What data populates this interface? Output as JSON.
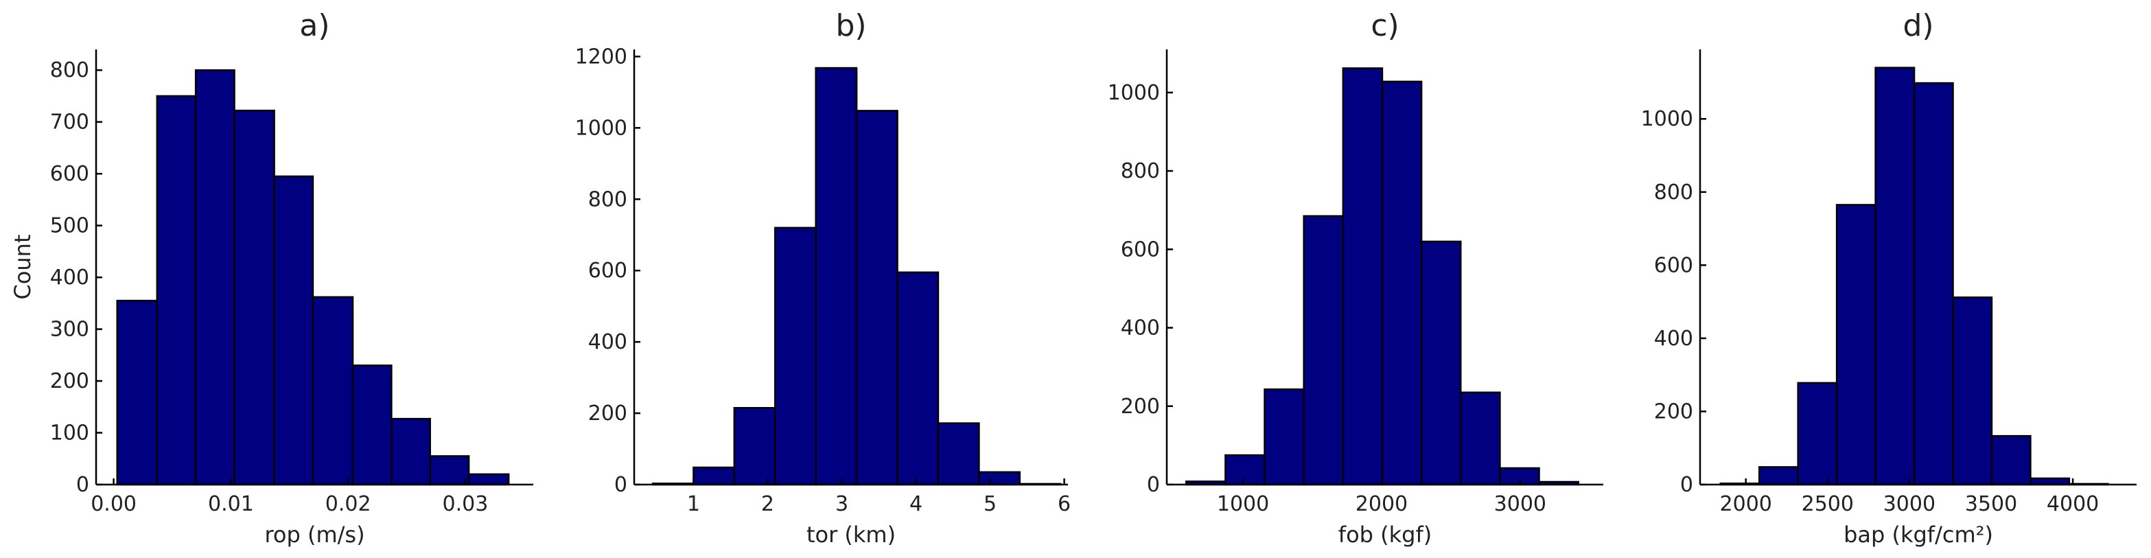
{
  "colors": {
    "bar_fill": "#000080",
    "bar_edge": "#000000"
  },
  "chart_data": [
    {
      "type": "bar",
      "title": "a)",
      "xlabel": "rop (m/s)",
      "ylabel": "Count",
      "xlim": [
        -0.0015,
        0.0358
      ],
      "ylim": [
        0,
        840
      ],
      "xticks": [
        0.0,
        0.01,
        0.02,
        0.03
      ],
      "xtick_labels": [
        "0.00",
        "0.01",
        "0.02",
        "0.03"
      ],
      "yticks": [
        0,
        100,
        200,
        300,
        400,
        500,
        600,
        700,
        800
      ],
      "yticks_labels": [
        "0",
        "100",
        "200",
        "300",
        "400",
        "500",
        "600",
        "700",
        "800"
      ],
      "bin_edges": [
        0.0003,
        0.0037,
        0.007,
        0.0103,
        0.0137,
        0.017,
        0.0204,
        0.0237,
        0.027,
        0.0303,
        0.0337
      ],
      "values": [
        355,
        750,
        800,
        722,
        595,
        362,
        230,
        127,
        55,
        20
      ]
    },
    {
      "type": "bar",
      "title": "b)",
      "xlabel": "tor (km)",
      "ylabel": "",
      "xlim": [
        0.2,
        6.05
      ],
      "ylim": [
        0,
        1220
      ],
      "xticks": [
        1,
        2,
        3,
        4,
        5,
        6
      ],
      "xtick_labels": [
        "1",
        "2",
        "3",
        "4",
        "5",
        "6"
      ],
      "yticks": [
        0,
        200,
        400,
        600,
        800,
        1000,
        1200
      ],
      "yticks_labels": [
        "0",
        "200",
        "400",
        "600",
        "800",
        "1000",
        "1200"
      ],
      "bin_edges": [
        0.45,
        1.0,
        1.55,
        2.1,
        2.65,
        3.2,
        3.75,
        4.3,
        4.85,
        5.4,
        5.95
      ],
      "values": [
        3,
        48,
        215,
        720,
        1168,
        1048,
        595,
        172,
        35,
        2
      ]
    },
    {
      "type": "bar",
      "title": "c)",
      "xlabel": "fob (kgf)",
      "ylabel": "",
      "xlim": [
        450,
        3600
      ],
      "ylim": [
        0,
        1110
      ],
      "xticks": [
        1000,
        2000,
        3000
      ],
      "xtick_labels": [
        "1000",
        "2000",
        "3000"
      ],
      "yticks": [
        0,
        200,
        400,
        600,
        800,
        1000
      ],
      "yticks_labels": [
        "0",
        "200",
        "400",
        "600",
        "800",
        "1000"
      ],
      "bin_edges": [
        590,
        873,
        1156,
        1439,
        1722,
        2005,
        2288,
        2571,
        2854,
        3137,
        3420
      ],
      "values": [
        8,
        75,
        243,
        685,
        1062,
        1028,
        620,
        235,
        42,
        7
      ]
    },
    {
      "type": "bar",
      "title": "d)",
      "xlabel": "bap (kgf/cm²)",
      "ylabel": "",
      "xlim": [
        1720,
        4390
      ],
      "ylim": [
        0,
        1190
      ],
      "xticks": [
        2000,
        2500,
        3000,
        3500,
        4000
      ],
      "xtick_labels": [
        "2000",
        "2500",
        "3000",
        "3500",
        "4000"
      ],
      "yticks": [
        0,
        200,
        400,
        600,
        800,
        1000
      ],
      "yticks_labels": [
        "0",
        "200",
        "400",
        "600",
        "800",
        "1000"
      ],
      "bin_edges": [
        1845,
        2082,
        2319,
        2556,
        2793,
        3030,
        3267,
        3504,
        3741,
        3978,
        4215
      ],
      "values": [
        3,
        48,
        278,
        765,
        1140,
        1098,
        512,
        133,
        17,
        2
      ]
    }
  ]
}
